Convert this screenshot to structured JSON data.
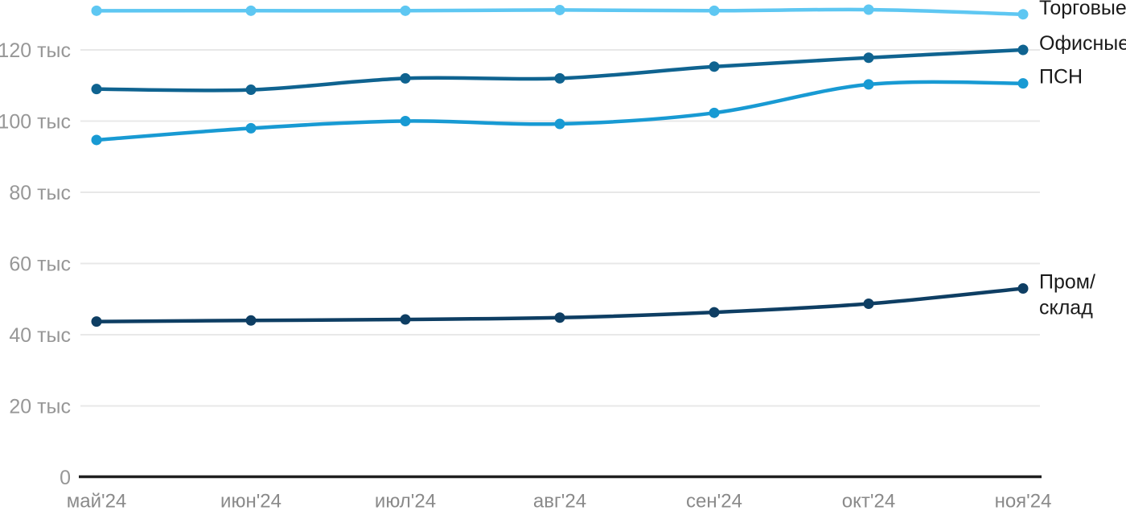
{
  "chart_data": {
    "type": "line",
    "title": "",
    "unit": "тыс",
    "x_categories": [
      "май'24",
      "июн'24",
      "июл'24",
      "авг'24",
      "сен'24",
      "окт'24",
      "ноя'24"
    ],
    "y_ticks": [
      {
        "value": 0,
        "label": "0"
      },
      {
        "value": 20,
        "label": "20 тыс"
      },
      {
        "value": 40,
        "label": "40 тыс"
      },
      {
        "value": 60,
        "label": "60 тыс"
      },
      {
        "value": 80,
        "label": "80 тыс"
      },
      {
        "value": 100,
        "label": "100 тыс"
      },
      {
        "value": 120,
        "label": "120 тыс"
      }
    ],
    "ylim": [
      0,
      133.5
    ],
    "grid": true,
    "legend_position": "right-end-of-line",
    "series": [
      {
        "name": "Торговые",
        "legend_lines": [
          "Торговые"
        ],
        "color": "#5EC7F2",
        "values": [
          131,
          131,
          131,
          131.2,
          131,
          131.3,
          130
        ]
      },
      {
        "name": "Офисные",
        "legend_lines": [
          "Офисные"
        ],
        "color": "#0F6390",
        "values": [
          109,
          108.8,
          112,
          112,
          115.3,
          117.8,
          120
        ]
      },
      {
        "name": "ПСН",
        "legend_lines": [
          "ПСН"
        ],
        "color": "#189AD3",
        "values": [
          94.7,
          98,
          100,
          99.2,
          102.3,
          110.3,
          110.6
        ]
      },
      {
        "name": "Пром/склад",
        "legend_lines": [
          "Пром/",
          "склад"
        ],
        "color": "#0E3E63",
        "values": [
          43.7,
          44,
          44.3,
          44.8,
          46.3,
          48.7,
          53
        ]
      }
    ],
    "colors": {
      "background": "#ffffff",
      "grid_line": "#e8e8e8",
      "axis_line": "#1f1f1f",
      "y_axis_label": "#979797",
      "x_axis_label": "#8a8a8a",
      "legend_text": "#1a1a1a"
    }
  }
}
